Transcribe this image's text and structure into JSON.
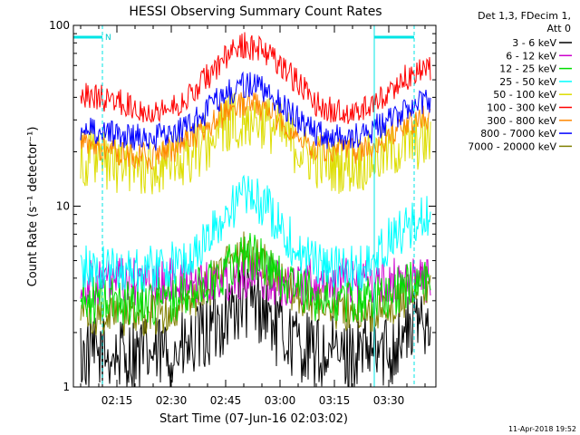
{
  "chart_data": {
    "type": "line",
    "title": "HESSI Observing Summary Count Rates",
    "xlabel": "Start Time (07-Jun-16 02:03:02)",
    "ylabel": "Count Rate (s⁻¹ detector⁻¹)",
    "yscale": "log",
    "ylim": [
      1,
      100
    ],
    "xlim": [
      "02:03",
      "03:43"
    ],
    "x_ticks": [
      "02:15",
      "02:30",
      "02:45",
      "03:00",
      "03:15",
      "03:30"
    ],
    "y_ticks": [
      "1",
      "10",
      "100"
    ],
    "legend_position": "outside-right",
    "legend_header": [
      "Det 1,3, FDecim 1,",
      "Att 0"
    ],
    "footer_date": "11-Apr-2018 19:52",
    "night_marker": "N",
    "series": [
      {
        "name": "3 - 6 keV",
        "color": "#000000",
        "x": [
          "02:05",
          "02:15",
          "02:25",
          "02:35",
          "02:45",
          "02:50",
          "02:55",
          "03:00",
          "03:10",
          "03:20",
          "03:30",
          "03:35",
          "03:40"
        ],
        "y": [
          1.5,
          1.5,
          1.5,
          1.6,
          2.5,
          3.0,
          2.8,
          2.0,
          1.5,
          1.5,
          1.6,
          2.0,
          2.5
        ]
      },
      {
        "name": "6 - 12 keV",
        "color": "#cc00cc",
        "x": [
          "02:05",
          "02:15",
          "02:25",
          "02:35",
          "02:45",
          "02:50",
          "02:55",
          "03:00",
          "03:10",
          "03:20",
          "03:30",
          "03:35",
          "03:40"
        ],
        "y": [
          3.8,
          3.8,
          3.8,
          3.8,
          4.0,
          4.2,
          4.0,
          3.8,
          3.8,
          3.8,
          3.8,
          3.9,
          4.0
        ]
      },
      {
        "name": "12 - 25 keV",
        "color": "#00dd00",
        "x": [
          "02:05",
          "02:15",
          "02:25",
          "02:35",
          "02:45",
          "02:50",
          "02:55",
          "03:00",
          "03:10",
          "03:20",
          "03:30",
          "03:35",
          "03:40"
        ],
        "y": [
          3.0,
          3.0,
          3.0,
          3.2,
          4.5,
          5.5,
          5.0,
          4.0,
          3.1,
          3.0,
          3.2,
          3.6,
          4.0
        ]
      },
      {
        "name": "25 - 50 keV",
        "color": "#00ffff",
        "x": [
          "02:05",
          "02:15",
          "02:25",
          "02:35",
          "02:40",
          "02:45",
          "02:50",
          "02:55",
          "03:00",
          "03:05",
          "03:15",
          "03:25",
          "03:30",
          "03:35",
          "03:40"
        ],
        "y": [
          4.5,
          4.5,
          4.5,
          5.0,
          6.5,
          9.0,
          11.5,
          10.5,
          8.0,
          5.5,
          4.5,
          4.5,
          6.5,
          7.5,
          8.5
        ]
      },
      {
        "name": "50 - 100 keV",
        "color": "#dddd00",
        "x": [
          "02:05",
          "02:10",
          "02:15",
          "02:20",
          "02:25",
          "02:30",
          "02:35",
          "02:40",
          "02:45",
          "02:50",
          "02:55",
          "03:00",
          "03:05",
          "03:10",
          "03:15",
          "03:20",
          "03:25",
          "03:30",
          "03:35",
          "03:40"
        ],
        "y": [
          19,
          18,
          17,
          16.5,
          16.5,
          17,
          19,
          23,
          28,
          31,
          30,
          26,
          21,
          18,
          17,
          17,
          18,
          20,
          22,
          23
        ]
      },
      {
        "name": "100 - 300 keV",
        "color": "#ff0000",
        "x": [
          "02:05",
          "02:10",
          "02:15",
          "02:20",
          "02:25",
          "02:30",
          "02:35",
          "02:40",
          "02:45",
          "02:50",
          "02:55",
          "03:00",
          "03:05",
          "03:10",
          "03:15",
          "03:20",
          "03:25",
          "03:30",
          "03:35",
          "03:40"
        ],
        "y": [
          42,
          40,
          38,
          35,
          34,
          35,
          40,
          52,
          66,
          78,
          74,
          62,
          48,
          37,
          33,
          33,
          36,
          42,
          52,
          58
        ]
      },
      {
        "name": "300 - 800 keV",
        "color": "#ff8800",
        "x": [
          "02:05",
          "02:10",
          "02:15",
          "02:20",
          "02:25",
          "02:30",
          "02:35",
          "02:40",
          "02:45",
          "02:50",
          "02:55",
          "03:00",
          "03:05",
          "03:10",
          "03:15",
          "03:20",
          "03:25",
          "03:30",
          "03:35",
          "03:40"
        ],
        "y": [
          22,
          21,
          20,
          19,
          19,
          20,
          23,
          27,
          33,
          37,
          35,
          30,
          24,
          21,
          20,
          20,
          21,
          24,
          28,
          31
        ]
      },
      {
        "name": "800 - 7000 keV",
        "color": "#0000ff",
        "x": [
          "02:05",
          "02:10",
          "02:15",
          "02:20",
          "02:25",
          "02:30",
          "02:35",
          "02:40",
          "02:45",
          "02:50",
          "02:55",
          "03:00",
          "03:05",
          "03:10",
          "03:15",
          "03:20",
          "03:25",
          "03:30",
          "03:35",
          "03:40"
        ],
        "y": [
          27,
          26,
          25,
          24,
          24,
          25,
          28,
          34,
          42,
          47,
          45,
          38,
          30,
          25,
          24,
          24,
          26,
          30,
          35,
          37
        ]
      },
      {
        "name": "7000 - 20000 keV",
        "color": "#808000",
        "x": [
          "02:05",
          "02:15",
          "02:25",
          "02:35",
          "02:45",
          "02:50",
          "02:55",
          "03:00",
          "03:10",
          "03:20",
          "03:30",
          "03:35",
          "03:40"
        ],
        "y": [
          2.5,
          2.5,
          2.5,
          2.8,
          4.5,
          5.5,
          5.0,
          3.8,
          2.8,
          2.5,
          2.8,
          3.2,
          3.6
        ]
      }
    ],
    "saa_intervals": [
      {
        "start": "02:03",
        "end": "02:11"
      },
      {
        "start": "03:26",
        "end": "03:37"
      }
    ]
  }
}
